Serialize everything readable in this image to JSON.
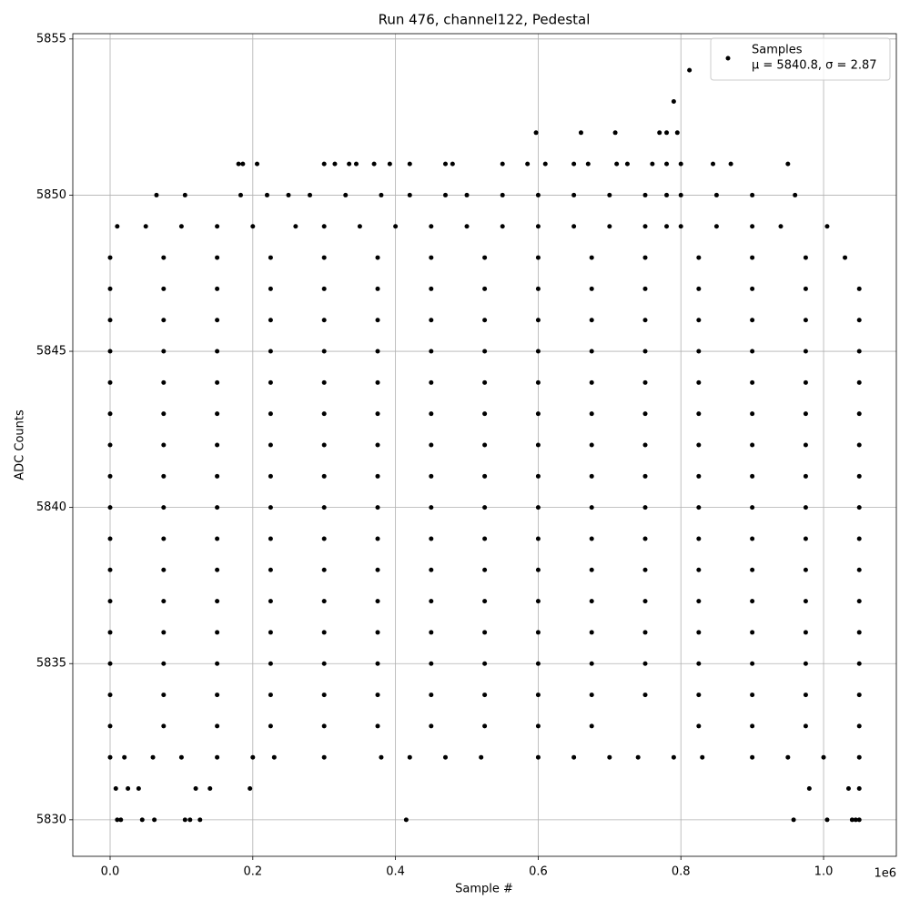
{
  "chart_data": {
    "type": "scatter",
    "title": "Run 476, channel122, Pedestal",
    "x_label": "Sample #",
    "y_label": "ADC Counts",
    "x_offset_label": "1e6",
    "xlim": [
      -52300,
      1102000
    ],
    "ylim": [
      5828.83,
      5855.17
    ],
    "xticks": [
      {
        "value": 0,
        "label": "0.0"
      },
      {
        "value": 200000,
        "label": "0.2"
      },
      {
        "value": 400000,
        "label": "0.4"
      },
      {
        "value": 600000,
        "label": "0.6"
      },
      {
        "value": 800000,
        "label": "0.8"
      },
      {
        "value": 1000000,
        "label": "1.0"
      }
    ],
    "yticks": [
      5830,
      5835,
      5840,
      5845,
      5850,
      5855
    ],
    "grid": true,
    "legend_position": "upper right",
    "series": [
      {
        "name": "Samples",
        "stats_label": "μ = 5840.8, σ = 2.87",
        "color": "#000000",
        "x": [
          0,
          75000,
          150000,
          225000,
          300000,
          375000,
          450000,
          525000,
          600000,
          675000,
          750000,
          825000,
          900000,
          975000,
          1050000,
          0,
          75000,
          150000,
          225000,
          300000,
          375000,
          450000,
          525000,
          600000,
          675000,
          750000,
          825000,
          900000,
          975000,
          1050000,
          0,
          75000,
          150000,
          225000,
          300000,
          375000,
          450000,
          525000,
          600000,
          675000,
          750000,
          825000,
          900000,
          975000,
          1050000,
          0,
          75000,
          150000,
          225000,
          300000,
          375000,
          450000,
          525000,
          600000,
          675000,
          750000,
          825000,
          900000,
          975000,
          1050000,
          0,
          75000,
          150000,
          225000,
          300000,
          375000,
          450000,
          525000,
          600000,
          675000,
          750000,
          825000,
          900000,
          975000,
          1050000,
          0,
          75000,
          150000,
          225000,
          300000,
          375000,
          450000,
          525000,
          600000,
          675000,
          750000,
          825000,
          900000,
          975000,
          1050000,
          0,
          75000,
          150000,
          225000,
          300000,
          375000,
          450000,
          525000,
          600000,
          675000,
          750000,
          825000,
          900000,
          975000,
          1050000,
          0,
          75000,
          150000,
          225000,
          300000,
          375000,
          450000,
          525000,
          600000,
          675000,
          750000,
          825000,
          900000,
          975000,
          1050000,
          0,
          75000,
          150000,
          225000,
          300000,
          375000,
          450000,
          525000,
          600000,
          675000,
          750000,
          825000,
          900000,
          975000,
          1050000,
          0,
          75000,
          150000,
          225000,
          300000,
          375000,
          450000,
          525000,
          600000,
          675000,
          750000,
          825000,
          900000,
          975000,
          1050000,
          0,
          75000,
          150000,
          225000,
          300000,
          375000,
          450000,
          525000,
          600000,
          675000,
          750000,
          825000,
          900000,
          975000,
          1050000,
          0,
          75000,
          150000,
          225000,
          300000,
          375000,
          450000,
          525000,
          600000,
          675000,
          750000,
          825000,
          900000,
          975000,
          1050000,
          0,
          75000,
          150000,
          225000,
          300000,
          375000,
          450000,
          525000,
          600000,
          675000,
          750000,
          825000,
          900000,
          975000,
          1050000,
          0,
          75000,
          150000,
          225000,
          300000,
          375000,
          450000,
          525000,
          600000,
          675000,
          750000,
          825000,
          900000,
          975000,
          1050000,
          0,
          75000,
          150000,
          225000,
          300000,
          375000,
          450000,
          525000,
          600000,
          675000,
          750000,
          825000,
          900000,
          975000,
          1030000,
          0,
          75000,
          150000,
          225000,
          300000,
          375000,
          450000,
          525000,
          600000,
          675000,
          825000,
          900000,
          975000,
          1050000,
          0,
          20000,
          60000,
          100000,
          150000,
          200000,
          230000,
          300000,
          380000,
          420000,
          470000,
          520000,
          600000,
          650000,
          700000,
          740000,
          790000,
          830000,
          900000,
          950000,
          1000000,
          1050000,
          10000,
          50000,
          100000,
          150000,
          200000,
          260000,
          300000,
          350000,
          400000,
          450000,
          500000,
          550000,
          600000,
          650000,
          700000,
          750000,
          780000,
          800000,
          850000,
          900000,
          940000,
          1005000,
          65000,
          105000,
          183000,
          220000,
          250000,
          280000,
          330000,
          380000,
          420000,
          470000,
          500000,
          550000,
          600000,
          650000,
          700000,
          750000,
          780000,
          800000,
          850000,
          900000,
          960000,
          180000,
          186000,
          206000,
          300000,
          315000,
          335000,
          345000,
          370000,
          392000,
          420000,
          470000,
          480000,
          550000,
          585000,
          610000,
          650000,
          670000,
          710000,
          725000,
          760000,
          780000,
          800000,
          845000,
          870000,
          950000,
          597000,
          660000,
          708000,
          770000,
          780000,
          795000,
          790000,
          812000,
          8000,
          25000,
          40000,
          120000,
          140000,
          196000,
          980000,
          1035000,
          1050000,
          10000,
          15000,
          45000,
          62000,
          105000,
          112000,
          126000,
          415000,
          958000,
          1005000,
          1040000,
          1045000,
          1050000
        ],
        "values": [
          5834,
          5834,
          5834,
          5834,
          5834,
          5834,
          5834,
          5834,
          5834,
          5834,
          5834,
          5834,
          5834,
          5834,
          5834,
          5835,
          5835,
          5835,
          5835,
          5835,
          5835,
          5835,
          5835,
          5835,
          5835,
          5835,
          5835,
          5835,
          5835,
          5835,
          5836,
          5836,
          5836,
          5836,
          5836,
          5836,
          5836,
          5836,
          5836,
          5836,
          5836,
          5836,
          5836,
          5836,
          5836,
          5837,
          5837,
          5837,
          5837,
          5837,
          5837,
          5837,
          5837,
          5837,
          5837,
          5837,
          5837,
          5837,
          5837,
          5837,
          5838,
          5838,
          5838,
          5838,
          5838,
          5838,
          5838,
          5838,
          5838,
          5838,
          5838,
          5838,
          5838,
          5838,
          5838,
          5839,
          5839,
          5839,
          5839,
          5839,
          5839,
          5839,
          5839,
          5839,
          5839,
          5839,
          5839,
          5839,
          5839,
          5839,
          5840,
          5840,
          5840,
          5840,
          5840,
          5840,
          5840,
          5840,
          5840,
          5840,
          5840,
          5840,
          5840,
          5840,
          5840,
          5841,
          5841,
          5841,
          5841,
          5841,
          5841,
          5841,
          5841,
          5841,
          5841,
          5841,
          5841,
          5841,
          5841,
          5841,
          5842,
          5842,
          5842,
          5842,
          5842,
          5842,
          5842,
          5842,
          5842,
          5842,
          5842,
          5842,
          5842,
          5842,
          5842,
          5843,
          5843,
          5843,
          5843,
          5843,
          5843,
          5843,
          5843,
          5843,
          5843,
          5843,
          5843,
          5843,
          5843,
          5843,
          5844,
          5844,
          5844,
          5844,
          5844,
          5844,
          5844,
          5844,
          5844,
          5844,
          5844,
          5844,
          5844,
          5844,
          5844,
          5845,
          5845,
          5845,
          5845,
          5845,
          5845,
          5845,
          5845,
          5845,
          5845,
          5845,
          5845,
          5845,
          5845,
          5845,
          5846,
          5846,
          5846,
          5846,
          5846,
          5846,
          5846,
          5846,
          5846,
          5846,
          5846,
          5846,
          5846,
          5846,
          5846,
          5847,
          5847,
          5847,
          5847,
          5847,
          5847,
          5847,
          5847,
          5847,
          5847,
          5847,
          5847,
          5847,
          5847,
          5847,
          5848,
          5848,
          5848,
          5848,
          5848,
          5848,
          5848,
          5848,
          5848,
          5848,
          5848,
          5848,
          5848,
          5848,
          5848,
          5833,
          5833,
          5833,
          5833,
          5833,
          5833,
          5833,
          5833,
          5833,
          5833,
          5833,
          5833,
          5833,
          5833,
          5832,
          5832,
          5832,
          5832,
          5832,
          5832,
          5832,
          5832,
          5832,
          5832,
          5832,
          5832,
          5832,
          5832,
          5832,
          5832,
          5832,
          5832,
          5832,
          5832,
          5832,
          5832,
          5849,
          5849,
          5849,
          5849,
          5849,
          5849,
          5849,
          5849,
          5849,
          5849,
          5849,
          5849,
          5849,
          5849,
          5849,
          5849,
          5849,
          5849,
          5849,
          5849,
          5849,
          5849,
          5850,
          5850,
          5850,
          5850,
          5850,
          5850,
          5850,
          5850,
          5850,
          5850,
          5850,
          5850,
          5850,
          5850,
          5850,
          5850,
          5850,
          5850,
          5850,
          5850,
          5850,
          5851,
          5851,
          5851,
          5851,
          5851,
          5851,
          5851,
          5851,
          5851,
          5851,
          5851,
          5851,
          5851,
          5851,
          5851,
          5851,
          5851,
          5851,
          5851,
          5851,
          5851,
          5851,
          5851,
          5851,
          5851,
          5852,
          5852,
          5852,
          5852,
          5852,
          5852,
          5853,
          5854,
          5831,
          5831,
          5831,
          5831,
          5831,
          5831,
          5831,
          5831,
          5831,
          5830,
          5830,
          5830,
          5830,
          5830,
          5830,
          5830,
          5830,
          5830,
          5830,
          5830,
          5830,
          5830
        ]
      }
    ]
  }
}
